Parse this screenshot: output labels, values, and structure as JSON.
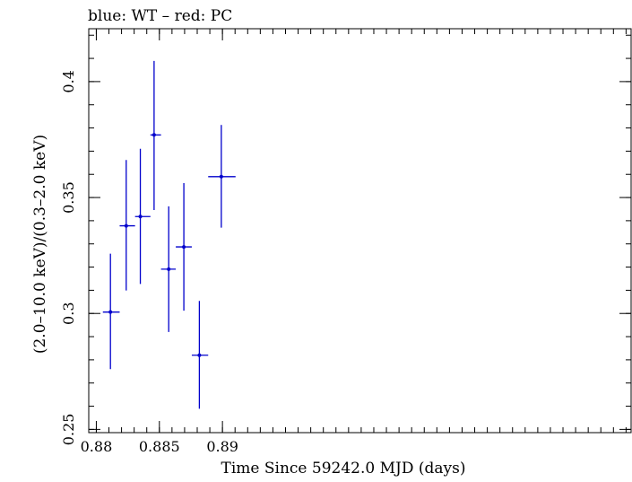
{
  "chart_data": {
    "type": "scatter",
    "title": "blue: WT – red: PC",
    "xlabel": "Time Since 59242.0 MJD (days)",
    "ylabel": "(2.0–10.0 keV)/(0.3–2.0 keV)",
    "xlim": [
      0.8794,
      0.9224
    ],
    "ylim": [
      0.2486,
      0.4228
    ],
    "x_ticks": [
      {
        "value": 0.88,
        "label": "0.88"
      },
      {
        "value": 0.885,
        "label": "0.885"
      },
      {
        "value": 0.89,
        "label": "0.89"
      }
    ],
    "y_ticks": [
      {
        "value": 0.25,
        "label": "0.25"
      },
      {
        "value": 0.3,
        "label": "0.3"
      },
      {
        "value": 0.35,
        "label": "0.35"
      },
      {
        "value": 0.4,
        "label": "0.4"
      }
    ],
    "x_minor_step": 0.001,
    "y_minor_step": 0.01,
    "grid": false,
    "series": [
      {
        "name": "WT",
        "color": "#0000cc",
        "points": [
          {
            "x": 0.88112,
            "xlo": 0.88052,
            "xhi": 0.88185,
            "y": 0.3006,
            "ylo": 0.276,
            "yhi": 0.3258
          },
          {
            "x": 0.88237,
            "xlo": 0.88185,
            "xhi": 0.88307,
            "y": 0.3378,
            "ylo": 0.3099,
            "yhi": 0.3662
          },
          {
            "x": 0.88349,
            "xlo": 0.88307,
            "xhi": 0.88429,
            "y": 0.3418,
            "ylo": 0.3127,
            "yhi": 0.371
          },
          {
            "x": 0.88458,
            "xlo": 0.88429,
            "xhi": 0.88513,
            "y": 0.377,
            "ylo": 0.3446,
            "yhi": 0.4089
          },
          {
            "x": 0.88574,
            "xlo": 0.88513,
            "xhi": 0.8863,
            "y": 0.3191,
            "ylo": 0.292,
            "yhi": 0.3462
          },
          {
            "x": 0.88694,
            "xlo": 0.8863,
            "xhi": 0.88757,
            "y": 0.3287,
            "ylo": 0.3012,
            "yhi": 0.3562
          },
          {
            "x": 0.88817,
            "xlo": 0.88757,
            "xhi": 0.88887,
            "y": 0.282,
            "ylo": 0.2589,
            "yhi": 0.3054
          },
          {
            "x": 0.88991,
            "xlo": 0.88887,
            "xhi": 0.89104,
            "y": 0.359,
            "ylo": 0.337,
            "yhi": 0.3813
          }
        ]
      }
    ]
  }
}
